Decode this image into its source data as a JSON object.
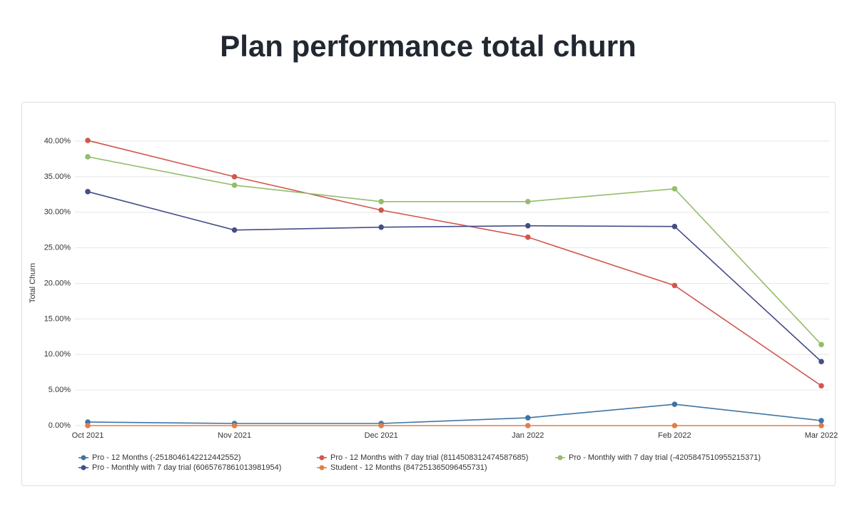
{
  "chart_data": {
    "type": "line",
    "title": "Plan performance total churn",
    "y_label": "Total Churn",
    "categories": [
      "Oct 2021",
      "Nov 2021",
      "Dec 2021",
      "Jan 2022",
      "Feb 2022",
      "Mar 2022"
    ],
    "series": [
      {
        "name": "Pro - 12 Months (-2518046142212442552)",
        "color": "#3f74a3",
        "values": [
          0.5,
          0.3,
          0.3,
          1.1,
          3.0,
          0.7
        ]
      },
      {
        "name": "Pro - 12 Months with 7 day trial (8114508312474587685)",
        "color": "#d0574f",
        "values": [
          40.1,
          35.0,
          30.3,
          26.5,
          19.7,
          5.6
        ]
      },
      {
        "name": "Pro - Monthly with 7 day trial (-4205847510955215371)",
        "color": "#93bd6a",
        "values": [
          37.8,
          33.8,
          31.5,
          31.5,
          33.3,
          11.4
        ]
      },
      {
        "name": "Pro - Monthly with 7 day trial (6065767861013981954)",
        "color": "#454d89",
        "values": [
          32.9,
          27.5,
          27.9,
          28.1,
          28.0,
          9.0
        ]
      },
      {
        "name": "Student - 12 Months (847251365096455731)",
        "color": "#e07f47",
        "values": [
          0,
          0,
          0,
          0,
          0,
          0
        ]
      }
    ],
    "ylim": [
      0,
      40
    ],
    "yticks": [
      {
        "value": 0,
        "label": "0.00%"
      },
      {
        "value": 5,
        "label": "5.00%"
      },
      {
        "value": 10,
        "label": "10.00%"
      },
      {
        "value": 15,
        "label": "15.00%"
      },
      {
        "value": 20,
        "label": "20.00%"
      },
      {
        "value": 25,
        "label": "25.00%"
      },
      {
        "value": 30,
        "label": "30.00%"
      },
      {
        "value": 35,
        "label": "35.00%"
      },
      {
        "value": 40,
        "label": "40.00%"
      }
    ],
    "grid": true
  }
}
